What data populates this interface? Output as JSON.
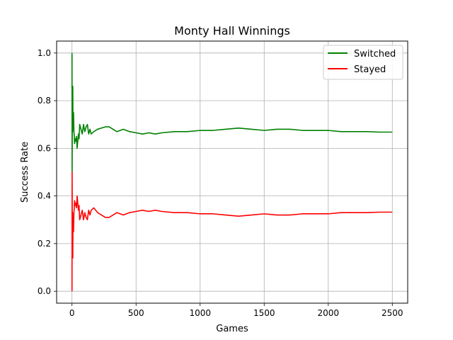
{
  "chart_data": {
    "type": "line",
    "title": "Monty Hall Winnings",
    "xlabel": "Games",
    "ylabel": "Success Rate",
    "xlim": [
      -120,
      2620
    ],
    "ylim": [
      -0.05,
      1.05
    ],
    "grid": true,
    "legend_position": "top-right",
    "x_ticks": [
      0,
      500,
      1000,
      1500,
      2000,
      2500
    ],
    "x_tick_labels": [
      "0",
      "500",
      "1000",
      "1500",
      "2000",
      "2500"
    ],
    "y_ticks": [
      0.0,
      0.2,
      0.4,
      0.6,
      0.8,
      1.0
    ],
    "y_tick_labels": [
      "0.0",
      "0.2",
      "0.4",
      "0.6",
      "0.8",
      "1.0"
    ],
    "series": [
      {
        "name": "Switched",
        "color": "#008000",
        "points": [
          [
            0,
            1.0
          ],
          [
            1,
            0.5
          ],
          [
            2,
            0.67
          ],
          [
            3,
            0.75
          ],
          [
            4,
            0.8
          ],
          [
            5,
            0.67
          ],
          [
            6,
            0.86
          ],
          [
            7,
            0.75
          ],
          [
            9,
            0.7
          ],
          [
            12,
            0.75
          ],
          [
            15,
            0.67
          ],
          [
            18,
            0.65
          ],
          [
            20,
            0.62
          ],
          [
            25,
            0.64
          ],
          [
            30,
            0.63
          ],
          [
            35,
            0.65
          ],
          [
            40,
            0.6
          ],
          [
            45,
            0.63
          ],
          [
            50,
            0.66
          ],
          [
            55,
            0.64
          ],
          [
            60,
            0.7
          ],
          [
            70,
            0.68
          ],
          [
            80,
            0.66
          ],
          [
            90,
            0.7
          ],
          [
            100,
            0.67
          ],
          [
            110,
            0.69
          ],
          [
            120,
            0.7
          ],
          [
            130,
            0.66
          ],
          [
            140,
            0.68
          ],
          [
            150,
            0.66
          ],
          [
            170,
            0.67
          ],
          [
            200,
            0.68
          ],
          [
            230,
            0.685
          ],
          [
            260,
            0.69
          ],
          [
            290,
            0.69
          ],
          [
            320,
            0.68
          ],
          [
            350,
            0.67
          ],
          [
            400,
            0.68
          ],
          [
            450,
            0.67
          ],
          [
            500,
            0.665
          ],
          [
            550,
            0.66
          ],
          [
            600,
            0.665
          ],
          [
            650,
            0.66
          ],
          [
            700,
            0.665
          ],
          [
            800,
            0.67
          ],
          [
            900,
            0.67
          ],
          [
            1000,
            0.675
          ],
          [
            1100,
            0.675
          ],
          [
            1200,
            0.68
          ],
          [
            1300,
            0.685
          ],
          [
            1400,
            0.68
          ],
          [
            1500,
            0.675
          ],
          [
            1600,
            0.68
          ],
          [
            1700,
            0.68
          ],
          [
            1800,
            0.675
          ],
          [
            1900,
            0.675
          ],
          [
            2000,
            0.675
          ],
          [
            2100,
            0.67
          ],
          [
            2200,
            0.67
          ],
          [
            2300,
            0.67
          ],
          [
            2400,
            0.668
          ],
          [
            2500,
            0.668
          ]
        ]
      },
      {
        "name": "Stayed",
        "color": "#ff0000",
        "points": [
          [
            0,
            0.0
          ],
          [
            1,
            0.5
          ],
          [
            2,
            0.33
          ],
          [
            3,
            0.25
          ],
          [
            4,
            0.2
          ],
          [
            5,
            0.33
          ],
          [
            6,
            0.14
          ],
          [
            7,
            0.25
          ],
          [
            9,
            0.3
          ],
          [
            12,
            0.25
          ],
          [
            15,
            0.33
          ],
          [
            18,
            0.35
          ],
          [
            20,
            0.38
          ],
          [
            25,
            0.36
          ],
          [
            30,
            0.37
          ],
          [
            35,
            0.35
          ],
          [
            40,
            0.4
          ],
          [
            45,
            0.37
          ],
          [
            50,
            0.34
          ],
          [
            55,
            0.36
          ],
          [
            60,
            0.3
          ],
          [
            70,
            0.32
          ],
          [
            80,
            0.34
          ],
          [
            90,
            0.3
          ],
          [
            100,
            0.33
          ],
          [
            110,
            0.31
          ],
          [
            120,
            0.3
          ],
          [
            130,
            0.34
          ],
          [
            140,
            0.32
          ],
          [
            150,
            0.34
          ],
          [
            170,
            0.35
          ],
          [
            200,
            0.33
          ],
          [
            230,
            0.32
          ],
          [
            260,
            0.31
          ],
          [
            290,
            0.31
          ],
          [
            320,
            0.32
          ],
          [
            350,
            0.33
          ],
          [
            400,
            0.32
          ],
          [
            450,
            0.33
          ],
          [
            500,
            0.335
          ],
          [
            550,
            0.34
          ],
          [
            600,
            0.335
          ],
          [
            650,
            0.34
          ],
          [
            700,
            0.335
          ],
          [
            800,
            0.33
          ],
          [
            900,
            0.33
          ],
          [
            1000,
            0.325
          ],
          [
            1100,
            0.325
          ],
          [
            1200,
            0.32
          ],
          [
            1300,
            0.315
          ],
          [
            1400,
            0.32
          ],
          [
            1500,
            0.325
          ],
          [
            1600,
            0.32
          ],
          [
            1700,
            0.32
          ],
          [
            1800,
            0.325
          ],
          [
            1900,
            0.325
          ],
          [
            2000,
            0.325
          ],
          [
            2100,
            0.33
          ],
          [
            2200,
            0.33
          ],
          [
            2300,
            0.33
          ],
          [
            2400,
            0.332
          ],
          [
            2500,
            0.332
          ]
        ]
      }
    ]
  }
}
